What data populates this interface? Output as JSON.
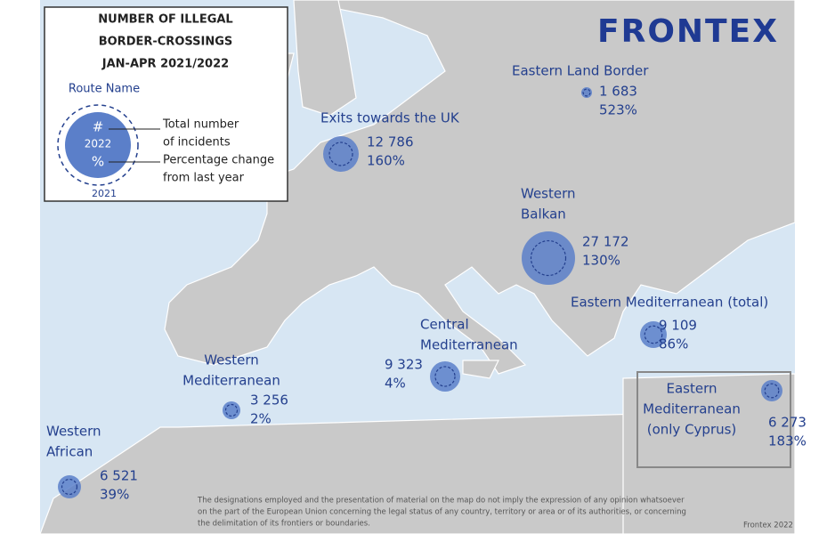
{
  "legend": {
    "title": [
      "NUMBER OF ILLEGAL",
      "BORDER-CROSSINGS",
      "JAN-APR 2021/2022"
    ],
    "route_name": "Route Name",
    "sample_value": "#",
    "year_current": "2022",
    "sample_change": "%",
    "year_previous": "2021",
    "value_caption": [
      "Total number",
      "of incidents"
    ],
    "change_caption": [
      "Percentage change",
      "from last year"
    ]
  },
  "brand": "FRONTEX",
  "routes": [
    {
      "name": [
        "Exits towards the UK"
      ],
      "value": "12 786",
      "change": "160%"
    },
    {
      "name": [
        "Eastern Land Border"
      ],
      "value": "1 683",
      "change": "523%"
    },
    {
      "name": [
        "Western",
        "Balkan"
      ],
      "value": "27 172",
      "change": "130%"
    },
    {
      "name": [
        "Eastern Mediterranean (total)"
      ],
      "value": "9 109",
      "change": "86%"
    },
    {
      "name": [
        "Eastern",
        "Mediterranean",
        "(only Cyprus)"
      ],
      "value": "6 273",
      "change": "183%"
    },
    {
      "name": [
        "Central",
        "Mediterranean"
      ],
      "value": "9 323",
      "change": "4%"
    },
    {
      "name": [
        "Western",
        "Mediterranean"
      ],
      "value": "3 256",
      "change": "2%"
    },
    {
      "name": [
        "Western",
        "African"
      ],
      "value": "6 521",
      "change": "39%"
    }
  ],
  "disclaimer": [
    "The designations employed and the presentation of material on the map do not imply the expression of any opinion whatsoever",
    "on the part of the European Union concerning the legal status of any country, territory or area or of its authorities, or concerning",
    "the delimitation of its frontiers or boundaries."
  ],
  "credit": "Frontex 2022"
}
